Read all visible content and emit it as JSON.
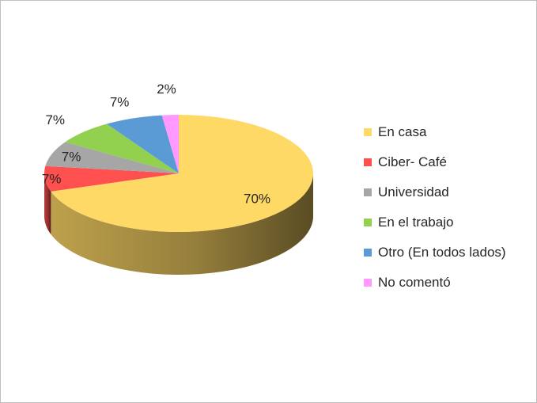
{
  "chart_data": {
    "type": "pie",
    "title": "",
    "three_d": true,
    "legend_position": "right",
    "slices": [
      {
        "label": "En casa",
        "value": 70,
        "value_label": "70%",
        "color": "#FFD966"
      },
      {
        "label": "Ciber- Café",
        "value": 7,
        "value_label": "7%",
        "color": "#FF5050"
      },
      {
        "label": "Universidad",
        "value": 7,
        "value_label": "7%",
        "color": "#A6A6A6"
      },
      {
        "label": "En el trabajo",
        "value": 7,
        "value_label": "7%",
        "color": "#92D050"
      },
      {
        "label": "Otro (En todos lados)",
        "value": 7,
        "value_label": "7%",
        "color": "#5B9BD5"
      },
      {
        "label": "No comentó",
        "value": 2,
        "value_label": "2%",
        "color": "#FF99FF"
      }
    ]
  }
}
